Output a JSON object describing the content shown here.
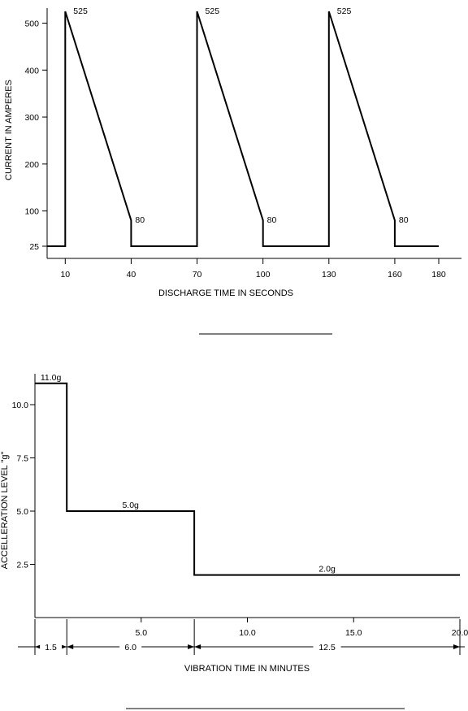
{
  "chart_data": [
    {
      "type": "line",
      "ylabel": "CURRENT IN AMPERES",
      "xlabel": "DISCHARGE TIME IN SECONDS",
      "xticks": [
        "10",
        "40",
        "70",
        "100",
        "130",
        "160",
        "180"
      ],
      "yticks": [
        "25",
        "100",
        "200",
        "300",
        "400",
        "500"
      ],
      "ylim": [
        25,
        525
      ],
      "series": [
        {
          "x": [
            0,
            10,
            10,
            40,
            40,
            70,
            70,
            100,
            100,
            130,
            130,
            160,
            160,
            180
          ],
          "y": [
            25,
            25,
            525,
            80,
            25,
            25,
            525,
            80,
            25,
            25,
            525,
            80,
            25,
            25
          ]
        }
      ],
      "annotations": [
        {
          "text": "525",
          "x": 10,
          "y": 525
        },
        {
          "text": "80",
          "x": 40,
          "y": 80
        },
        {
          "text": "525",
          "x": 70,
          "y": 525
        },
        {
          "text": "80",
          "x": 100,
          "y": 80
        },
        {
          "text": "525",
          "x": 130,
          "y": 525
        },
        {
          "text": "80",
          "x": 160,
          "y": 80
        }
      ]
    },
    {
      "type": "line",
      "ylabel": "ACCELLERATION LEVEL \"g\"",
      "xlabel": "VIBRATION TIME IN MINUTES",
      "xticks": [
        "5.0",
        "10.0",
        "15.0",
        "20.0"
      ],
      "yticks": [
        "2.5",
        "5.0",
        "7.5",
        "10.0"
      ],
      "xlim": [
        0,
        20
      ],
      "ylim": [
        0,
        11
      ],
      "series": [
        {
          "x": [
            0,
            1.5,
            1.5,
            7.5,
            7.5,
            20
          ],
          "y": [
            11,
            11,
            5,
            5,
            2,
            2
          ]
        }
      ],
      "annotations": [
        {
          "text": "11.0g",
          "x": 0.75,
          "y": 11
        },
        {
          "text": "5.0g",
          "x": 4.5,
          "y": 5
        },
        {
          "text": "2.0g",
          "x": 13.75,
          "y": 2
        }
      ],
      "durations": [
        {
          "text": "1.5",
          "from": 0,
          "to": 1.5
        },
        {
          "text": "6.0",
          "from": 1.5,
          "to": 7.5
        },
        {
          "text": "12.5",
          "from": 7.5,
          "to": 20
        }
      ]
    }
  ]
}
